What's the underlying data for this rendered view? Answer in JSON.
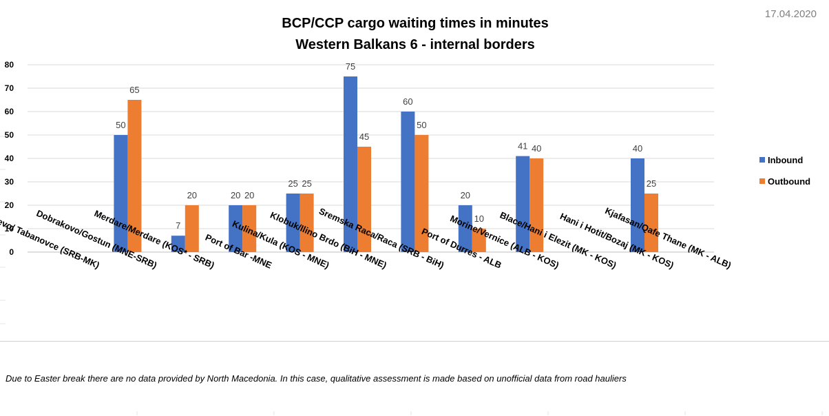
{
  "date": "17.04.2020",
  "note": "Due to Easter break there are no data provided by North Macedonia. In this case, qualitative assessment is made based on unofficial data from road hauliers",
  "colors": {
    "inbound": "#4472c4",
    "outbound": "#ed7d31",
    "grid": "#d9d9d9"
  },
  "chart_data": {
    "type": "bar",
    "title": "BCP/CCP cargo waiting times in minutes",
    "subtitle": "Western Balkans 6 - internal borders",
    "xlabel": "",
    "ylabel": "",
    "ylim": [
      0,
      80
    ],
    "yticks": [
      0,
      10,
      20,
      30,
      40,
      50,
      60,
      70,
      80
    ],
    "grid": true,
    "legend_position": "right",
    "categories": [
      "Presevo/ Tabanovce (SRB-MK)",
      "Dobrakovo/Gostun (MNE-SRB)",
      "Merdare/Merdare (KOS* - SRB)",
      "Port of Bar -MNE",
      "Kulina/Kula (KOS - MNE)",
      "Klobuk/Ilino Brdo (BiH - MNE)",
      "Sremska Raca/Raca (SRB - BiH)",
      "Port of Durres - ALB",
      "Morine/Vernice (ALB - KOS)",
      "Blace/Hani i Elezit (MK - KOS)",
      "Hani i Hotit/Bozaj (MK - KOS)",
      "Kjafasan/Qafe Thane (MK - ALB)"
    ],
    "series": [
      {
        "name": "Inbound",
        "values": [
          null,
          50,
          7,
          20,
          25,
          75,
          60,
          20,
          41,
          null,
          40,
          null
        ]
      },
      {
        "name": "Outbound",
        "values": [
          null,
          65,
          20,
          20,
          25,
          45,
          50,
          10,
          40,
          null,
          25,
          null
        ]
      }
    ]
  }
}
